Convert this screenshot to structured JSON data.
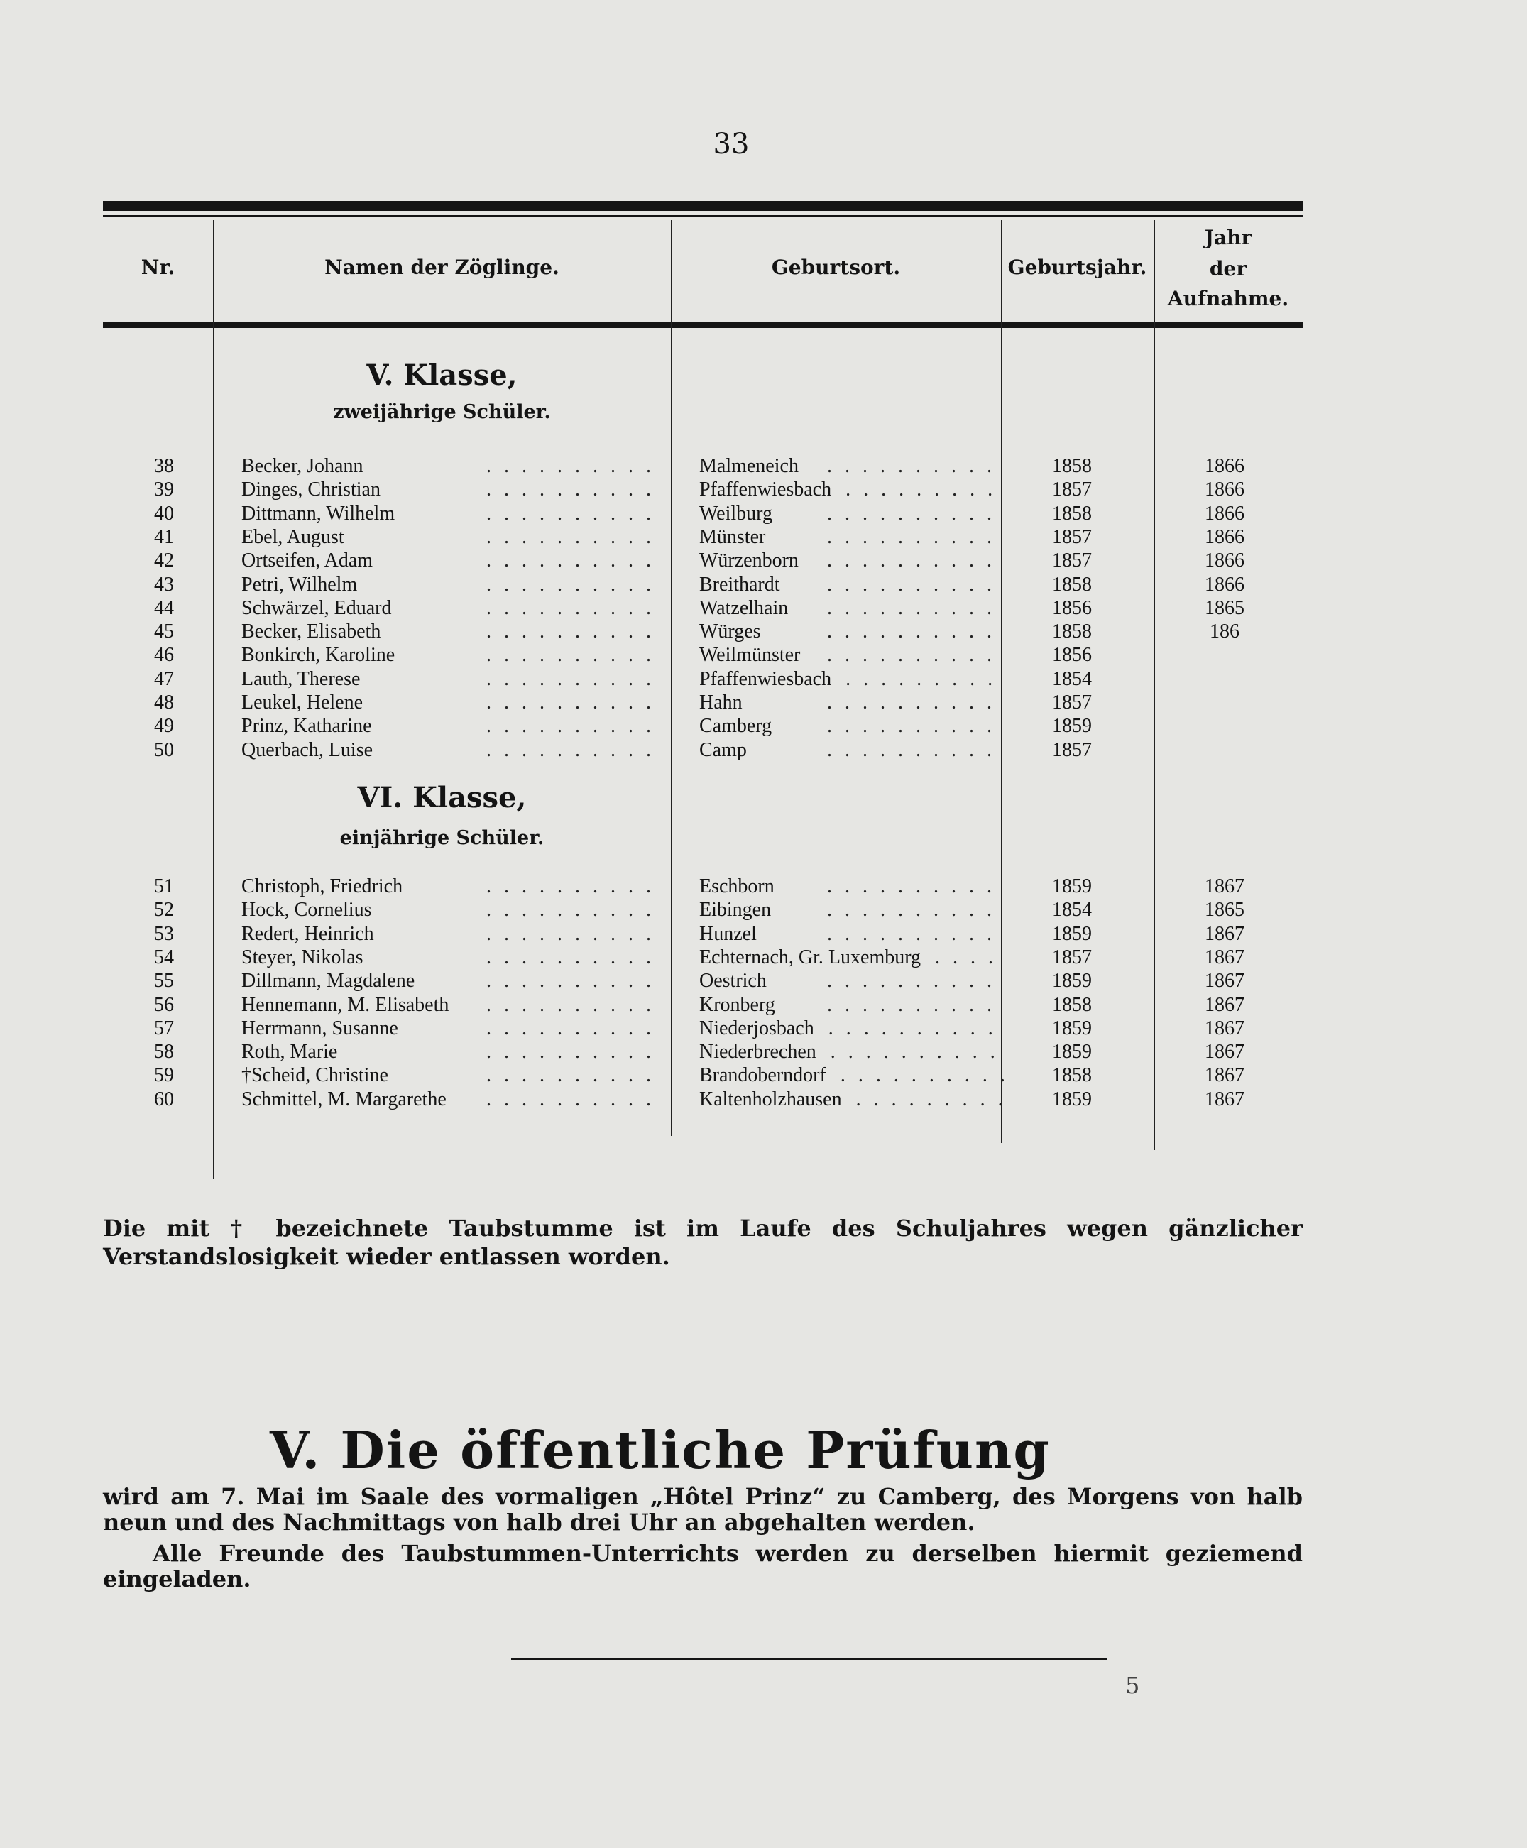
{
  "page_number": "33",
  "table": {
    "headers": {
      "nr": "Nr.",
      "name": "Namen der Zöglinge.",
      "birthplace": "Geburtsort.",
      "birthyear": "Geburtsjahr.",
      "admission_line1": "Jahr",
      "admission_line2": "der",
      "admission_line3": "Aufnahme."
    },
    "sections": [
      {
        "title": "V. Klasse,",
        "subtitle": "zweijährige Schüler.",
        "rows": [
          {
            "nr": "38",
            "name": "Becker, Johann",
            "place": "Malmeneich",
            "birth": "1858",
            "admit": "1866"
          },
          {
            "nr": "39",
            "name": "Dinges, Christian",
            "place": "Pfaffenwiesbach",
            "birth": "1857",
            "admit": "1866"
          },
          {
            "nr": "40",
            "name": "Dittmann, Wilhelm",
            "place": "Weilburg",
            "birth": "1858",
            "admit": "1866"
          },
          {
            "nr": "41",
            "name": "Ebel, August",
            "place": "Münster",
            "birth": "1857",
            "admit": "1866"
          },
          {
            "nr": "42",
            "name": "Ortseifen, Adam",
            "place": "Würzenborn",
            "birth": "1857",
            "admit": "1866"
          },
          {
            "nr": "43",
            "name": "Petri, Wilhelm",
            "place": "Breithardt",
            "birth": "1858",
            "admit": "1866"
          },
          {
            "nr": "44",
            "name": "Schwärzel, Eduard",
            "place": "Watzelhain",
            "birth": "1856",
            "admit": "1865"
          },
          {
            "nr": "45",
            "name": "Becker, Elisabeth",
            "place": "Würges",
            "birth": "1858",
            "admit": "186"
          },
          {
            "nr": "46",
            "name": "Bonkirch, Karoline",
            "place": "Weilmünster",
            "birth": "1856",
            "admit": ""
          },
          {
            "nr": "47",
            "name": "Lauth, Therese",
            "place": "Pfaffenwiesbach",
            "birth": "1854",
            "admit": ""
          },
          {
            "nr": "48",
            "name": "Leukel, Helene",
            "place": "Hahn",
            "birth": "1857",
            "admit": ""
          },
          {
            "nr": "49",
            "name": "Prinz, Katharine",
            "place": "Camberg",
            "birth": "1859",
            "admit": ""
          },
          {
            "nr": "50",
            "name": "Querbach, Luise",
            "place": "Camp",
            "birth": "1857",
            "admit": ""
          }
        ]
      },
      {
        "title": "VI. Klasse,",
        "subtitle": "einjährige Schüler.",
        "rows": [
          {
            "nr": "51",
            "name": "Christoph, Friedrich",
            "place": "Eschborn",
            "birth": "1859",
            "admit": "1867"
          },
          {
            "nr": "52",
            "name": "Hock, Cornelius",
            "place": "Eibingen",
            "birth": "1854",
            "admit": "1865"
          },
          {
            "nr": "53",
            "name": "Redert, Heinrich",
            "place": "Hunzel",
            "birth": "1859",
            "admit": "1867"
          },
          {
            "nr": "54",
            "name": "Steyer, Nikolas",
            "place": "Echternach, Gr. Luxemburg",
            "birth": "1857",
            "admit": "1867"
          },
          {
            "nr": "55",
            "name": "Dillmann, Magdalene",
            "place": "Oestrich",
            "birth": "1859",
            "admit": "1867"
          },
          {
            "nr": "56",
            "name": "Hennemann, M. Elisabeth",
            "place": "Kronberg",
            "birth": "1858",
            "admit": "1867"
          },
          {
            "nr": "57",
            "name": "Herrmann, Susanne",
            "place": "Niederjosbach",
            "birth": "1859",
            "admit": "1867"
          },
          {
            "nr": "58",
            "name": "Roth, Marie",
            "place": "Niederbrechen",
            "birth": "1859",
            "admit": "1867"
          },
          {
            "nr": "59",
            "name": "†Scheid, Christine",
            "place": "Brandoberndorf",
            "birth": "1858",
            "admit": "1867"
          },
          {
            "nr": "60",
            "name": "Schmittel, M. Margarethe",
            "place": "Kaltenholzhausen",
            "birth": "1859",
            "admit": "1867"
          }
        ]
      }
    ]
  },
  "footnote": "Die mit † bezeichnete Taubstumme ist im Laufe des Schuljahres wegen gänzlicher Verstandslosigkeit wieder entlassen worden.",
  "section_title": "V. Die öffentliche Prüfung",
  "paragraph1": "wird am 7. Mai im Saale des vormaligen „Hôtel Prinz“ zu Camberg, des Morgens von halb neun und des Nachmittags von halb drei Uhr an abgehalten werden.",
  "paragraph2": "Alle Freunde des Taubstummen-Unterrichts werden zu derselben hiermit geziemend eingeladen.",
  "signature_mark": "5"
}
